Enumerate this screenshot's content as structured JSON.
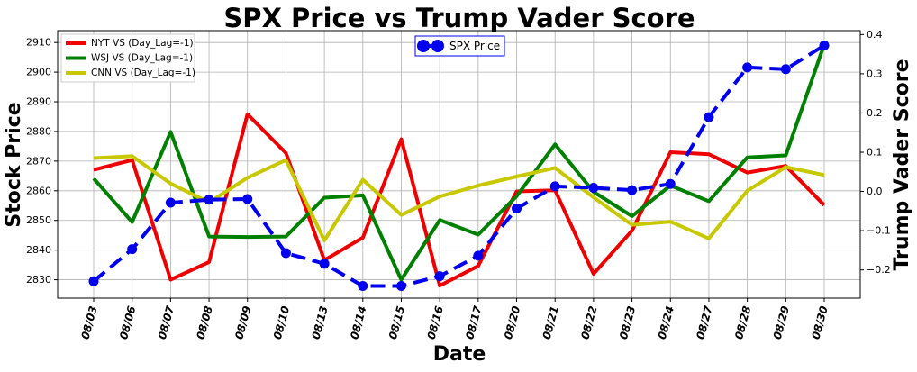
{
  "chart_data": {
    "type": "line",
    "title": "SPX Price vs Trump Vader Score",
    "xlabel": "Date",
    "ylabel_left": "Stock Price",
    "ylabel_right": "Trump Vader Score",
    "categories": [
      "08/03",
      "08/06",
      "08/07",
      "08/08",
      "08/09",
      "08/10",
      "08/13",
      "08/14",
      "08/15",
      "08/16",
      "08/17",
      "08/20",
      "08/21",
      "08/22",
      "08/23",
      "08/24",
      "08/27",
      "08/28",
      "08/29",
      "08/30"
    ],
    "left_axis": {
      "ylim": [
        2823.8,
        2914
      ],
      "ticks": [
        2830,
        2840,
        2850,
        2860,
        2870,
        2880,
        2890,
        2900,
        2910
      ]
    },
    "right_axis": {
      "ylim": [
        -0.272,
        0.41
      ],
      "ticks": [
        -0.2,
        -0.1,
        0.0,
        0.1,
        0.2,
        0.3,
        0.4
      ],
      "tick_labels": [
        "−0.2",
        "−0.1",
        "0.0",
        "0.1",
        "0.2",
        "0.3",
        "0.4"
      ]
    },
    "grid": true,
    "legend_left_placement": "top-left",
    "legend_right_placement": "top-center",
    "series": [
      {
        "name": "SPX Price",
        "axis": "left",
        "color": "#0000ee",
        "style": "dashed-with-markers",
        "values": [
          2829.5,
          2840.3,
          2856.0,
          2857.0,
          2857.2,
          2839.0,
          2835.4,
          2827.9,
          2827.9,
          2831.2,
          2838.1,
          2854.0,
          2861.5,
          2861.0,
          2860.2,
          2862.3,
          2884.8,
          2901.6,
          2901.0,
          2909.0
        ]
      },
      {
        "name": "NYT VS (Day_Lag=-1)",
        "axis": "right",
        "color": "#ee0000",
        "style": "solid",
        "values": [
          0.055,
          0.08,
          -0.225,
          -0.18,
          0.197,
          0.098,
          -0.175,
          -0.118,
          0.133,
          -0.24,
          -0.19,
          0.0,
          0.003,
          -0.21,
          -0.1,
          0.1,
          0.095,
          0.048,
          0.065,
          -0.035
        ]
      },
      {
        "name": "WSJ VS (Day_Lag=-1)",
        "axis": "right",
        "color": "#008000",
        "style": "solid",
        "values": [
          0.033,
          -0.078,
          0.152,
          -0.115,
          -0.116,
          -0.115,
          -0.016,
          -0.01,
          -0.225,
          -0.073,
          -0.11,
          -0.012,
          0.12,
          -0.001,
          -0.063,
          0.015,
          -0.025,
          0.087,
          0.092,
          0.375
        ]
      },
      {
        "name": "CNN VS (Day_Lag=-1)",
        "axis": "right",
        "color": "#c8c800",
        "style": "solid",
        "values": [
          0.085,
          0.09,
          0.02,
          -0.028,
          0.035,
          0.08,
          -0.125,
          0.03,
          -0.06,
          -0.013,
          0.015,
          0.038,
          0.06,
          -0.015,
          -0.085,
          -0.077,
          -0.12,
          0.002,
          0.062,
          0.042
        ]
      }
    ]
  }
}
